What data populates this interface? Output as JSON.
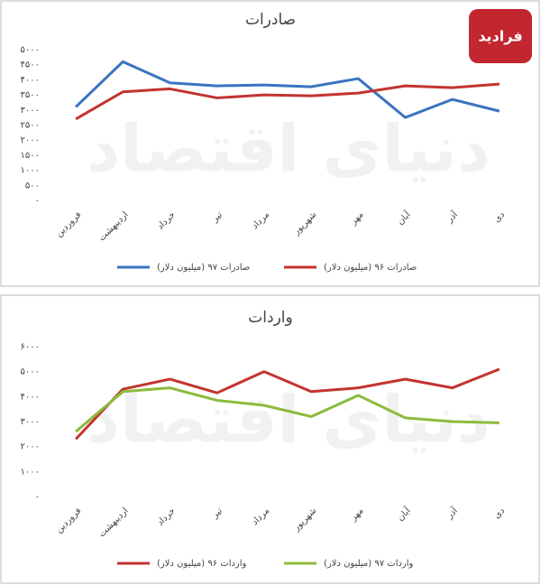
{
  "logo": "فرادید",
  "watermark": "دنیای اقتصاد",
  "chart_data": [
    {
      "type": "line",
      "title": "صادرات",
      "categories": [
        "فروردین",
        "اردیبهشت",
        "خرداد",
        "تیر",
        "مرداد",
        "شهریور",
        "مهر",
        "آبان",
        "آذر",
        "دی"
      ],
      "series": [
        {
          "name": "صادرات ۹۷ (میلیون دلار)",
          "color": "#3a74c0",
          "values": [
            3100,
            4600,
            3900,
            3800,
            3830,
            3770,
            4040,
            2750,
            3350,
            2960
          ]
        },
        {
          "name": "صادرات ۹۶ (میلیون دلار)",
          "color": "#c33430",
          "values": [
            2700,
            3600,
            3700,
            3400,
            3500,
            3470,
            3560,
            3800,
            3740,
            3860
          ]
        }
      ],
      "ylim": [
        0,
        5000
      ],
      "yticks": [
        {
          "value": 0,
          "label": "۰"
        },
        {
          "value": 500,
          "label": "۵۰۰"
        },
        {
          "value": 1000,
          "label": "۱۰۰۰"
        },
        {
          "value": 1500,
          "label": "۱۵۰۰"
        },
        {
          "value": 2000,
          "label": "۲۰۰۰"
        },
        {
          "value": 2500,
          "label": "۲۵۰۰"
        },
        {
          "value": 3000,
          "label": "۳۰۰۰"
        },
        {
          "value": 3500,
          "label": "۳۵۰۰"
        },
        {
          "value": 4000,
          "label": "۴۰۰۰"
        },
        {
          "value": 4500,
          "label": "۴۵۰۰"
        },
        {
          "value": 5000,
          "label": "۵۰۰۰"
        }
      ],
      "grid": false
    },
    {
      "type": "line",
      "title": "واردات",
      "categories": [
        "فروردین",
        "اردیبهشت",
        "خرداد",
        "تیر",
        "مرداد",
        "شهریور",
        "مهر",
        "آبان",
        "آذر",
        "دی"
      ],
      "series": [
        {
          "name": "واردات ۹۶ (میلیون دلار)",
          "color": "#c33430",
          "values": [
            2300,
            4300,
            4700,
            4150,
            5000,
            4200,
            4350,
            4700,
            4350,
            5100
          ]
        },
        {
          "name": "واردات ۹۷ (میلیون دلار)",
          "color": "#8cbb3c",
          "values": [
            2600,
            4200,
            4350,
            3850,
            3650,
            3200,
            4050,
            3150,
            3000,
            2950
          ]
        }
      ],
      "ylim": [
        0,
        6000
      ],
      "yticks": [
        {
          "value": 0,
          "label": "۰"
        },
        {
          "value": 1000,
          "label": "۱۰۰۰"
        },
        {
          "value": 2000,
          "label": "۲۰۰۰"
        },
        {
          "value": 3000,
          "label": "۳۰۰۰"
        },
        {
          "value": 4000,
          "label": "۴۰۰۰"
        },
        {
          "value": 5000,
          "label": "۵۰۰۰"
        },
        {
          "value": 6000,
          "label": "۶۰۰۰"
        }
      ],
      "grid": false
    }
  ]
}
